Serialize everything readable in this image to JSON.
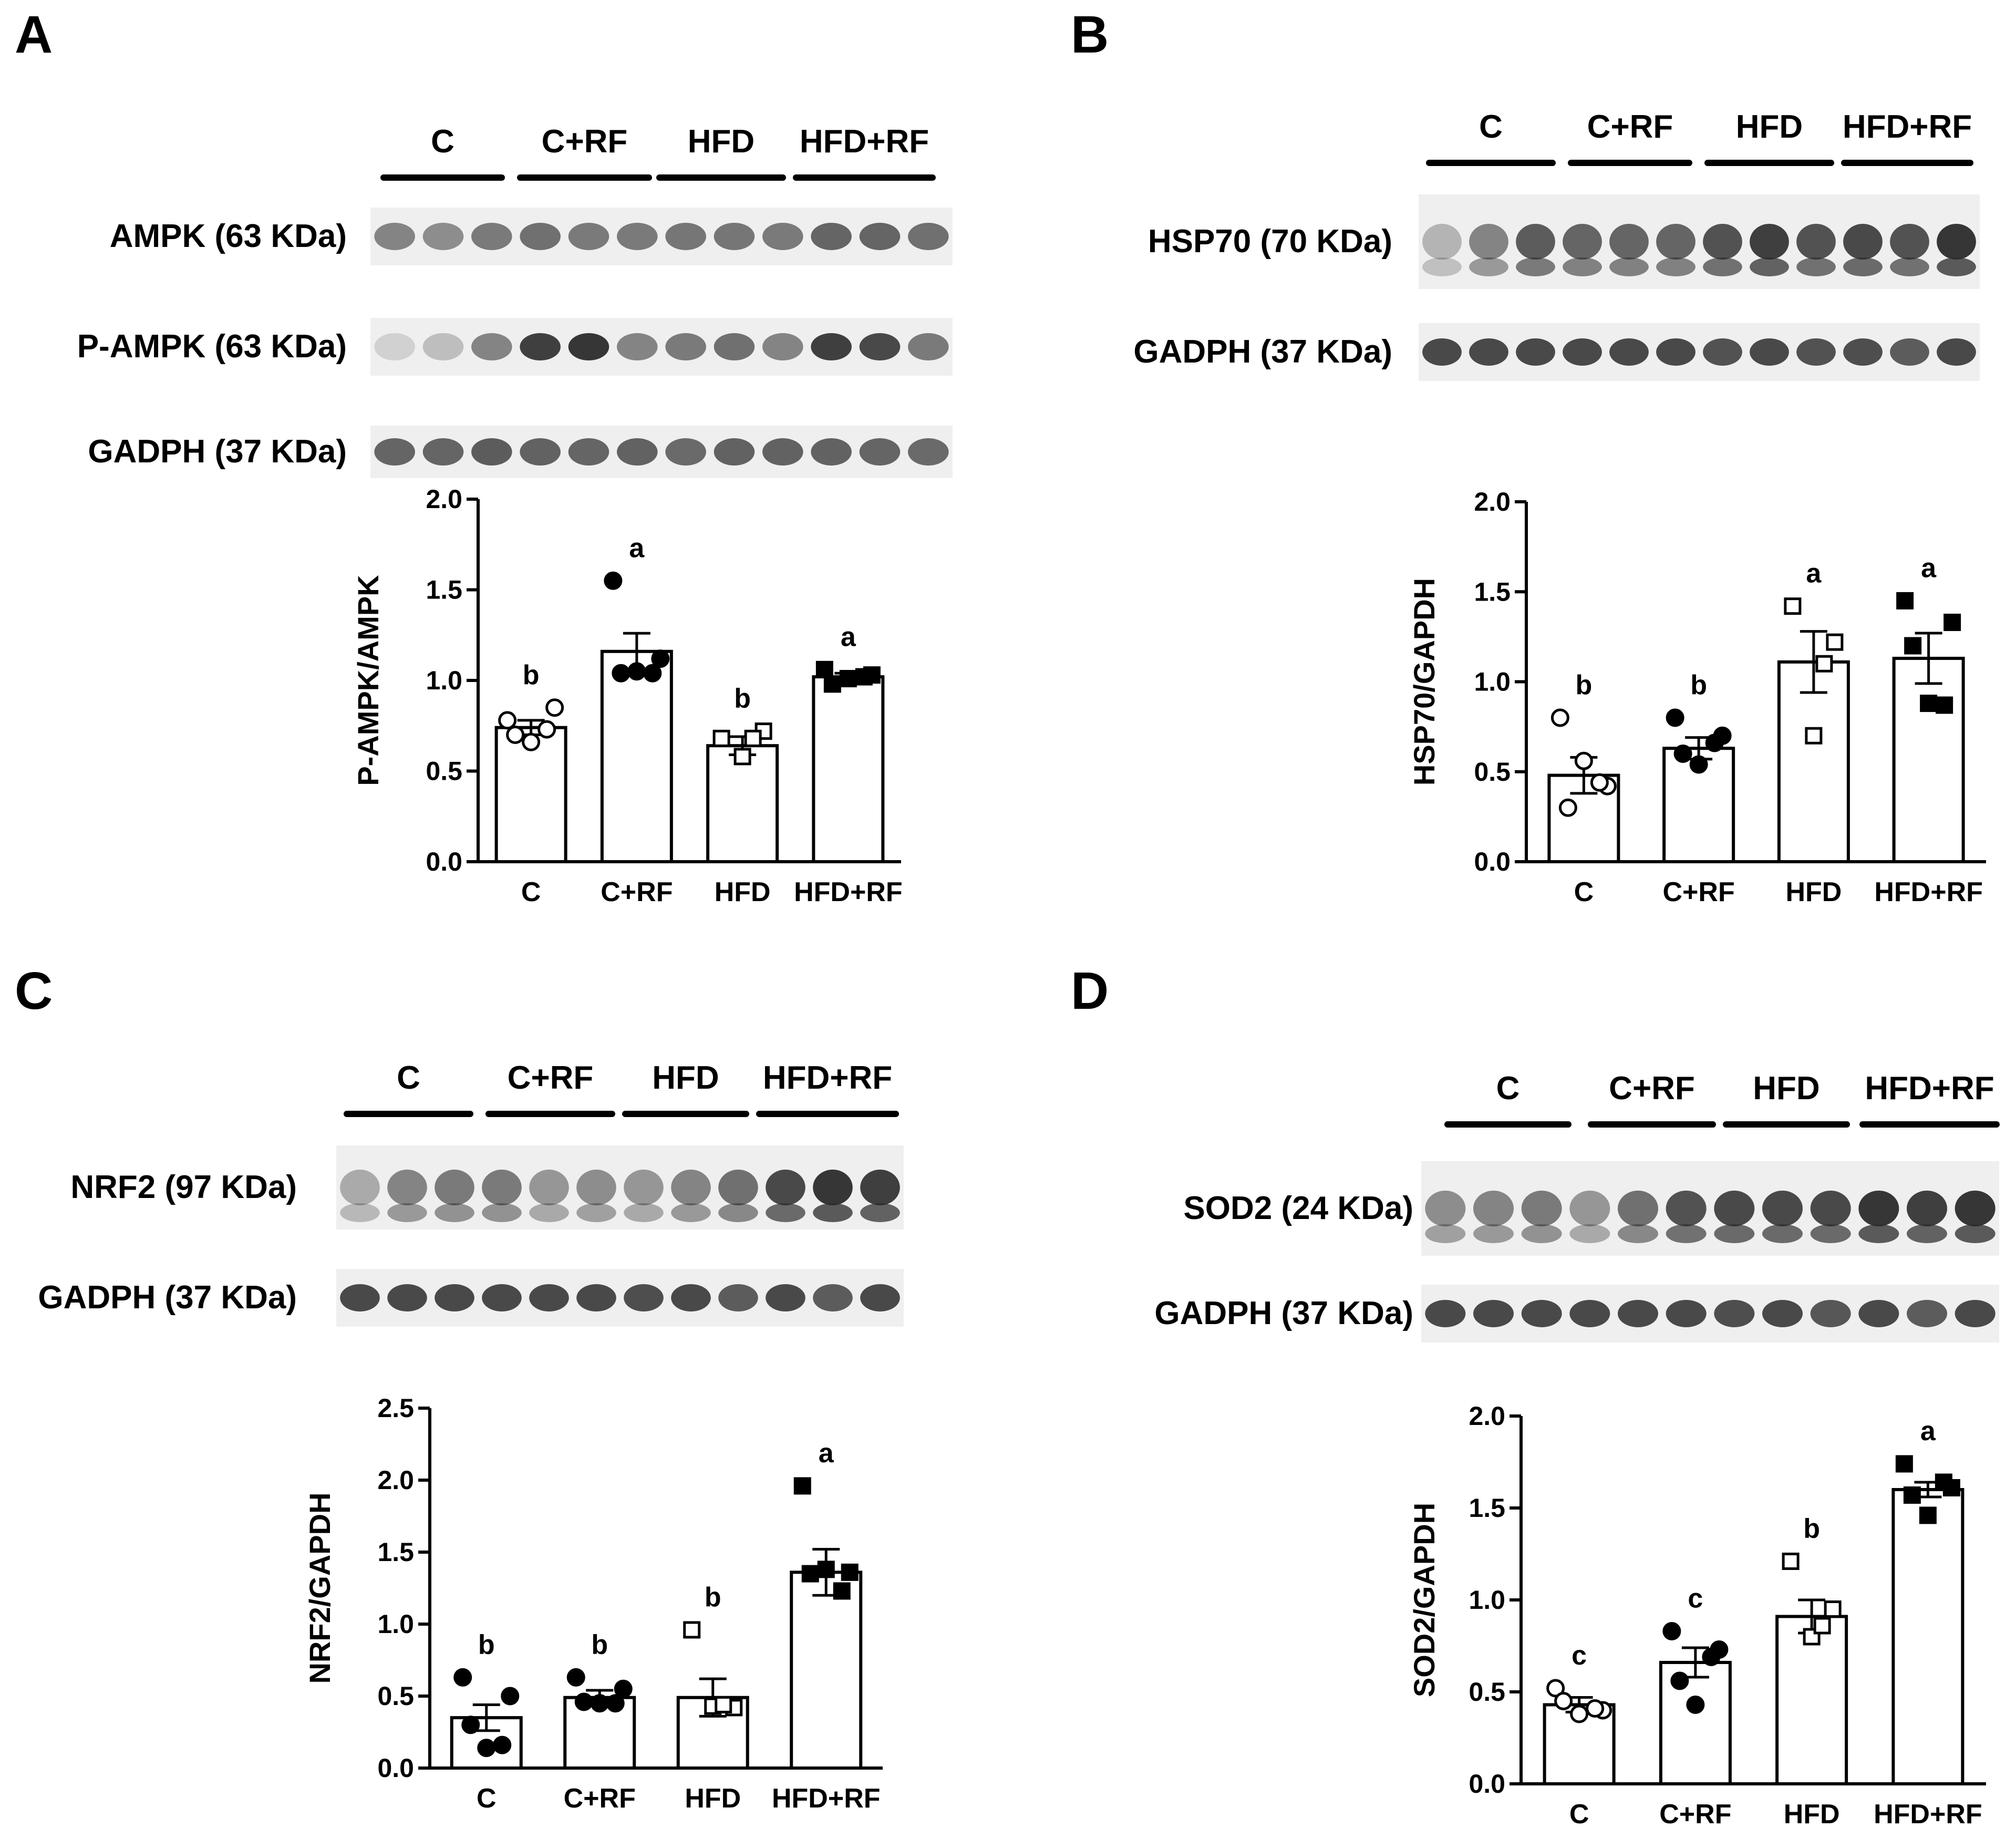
{
  "colors": {
    "ink": "#000000",
    "background": "#ffffff",
    "blot_band": "#2b2b2b",
    "blot_bg": "#efefef"
  },
  "panels": [
    {
      "letter": "A",
      "groups": [
        "C",
        "C+RF",
        "HFD",
        "HFD+RF"
      ],
      "blots": [
        {
          "label": "AMPK (63 KDa)",
          "intensities": [
            0.55,
            0.5,
            0.6,
            0.65,
            0.6,
            0.6,
            0.62,
            0.62,
            0.6,
            0.7,
            0.7,
            0.65
          ]
        },
        {
          "label": "P-AMPK (63 KDa)",
          "intensities": [
            0.15,
            0.25,
            0.55,
            0.9,
            0.95,
            0.55,
            0.6,
            0.65,
            0.55,
            0.9,
            0.85,
            0.6
          ]
        },
        {
          "label": "GADPH (37 KDa)",
          "intensities": [
            0.7,
            0.7,
            0.75,
            0.72,
            0.7,
            0.72,
            0.68,
            0.72,
            0.72,
            0.72,
            0.7,
            0.68
          ]
        }
      ],
      "chart_data": {
        "type": "bar",
        "ylabel": "P-AMPK/AMPK",
        "ylim": [
          0,
          2.0
        ],
        "yticks": [
          "0.0",
          "0.5",
          "1.0",
          "1.5",
          "2.0"
        ],
        "categories": [
          "C",
          "C+RF",
          "HFD",
          "HFD+RF"
        ],
        "values": [
          0.74,
          1.16,
          0.64,
          1.02
        ],
        "sem": [
          0.04,
          0.1,
          0.05,
          0.02
        ],
        "letters": [
          "b",
          "a",
          "b",
          "a"
        ],
        "markers": [
          "circle-open",
          "circle-filled",
          "square-open",
          "square-filled"
        ],
        "points": [
          [
            0.78,
            0.85,
            0.7,
            0.66,
            0.73
          ],
          [
            1.55,
            1.12,
            1.04,
            1.05,
            1.04
          ],
          [
            0.68,
            0.72,
            0.58,
            0.68
          ],
          [
            1.06,
            1.03,
            0.98,
            1.01,
            1.02
          ]
        ]
      }
    },
    {
      "letter": "B",
      "groups": [
        "C",
        "C+RF",
        "HFD",
        "HFD+RF"
      ],
      "blots": [
        {
          "label": "HSP70 (70 KDa)",
          "intensities": [
            0.3,
            0.55,
            0.75,
            0.7,
            0.7,
            0.7,
            0.8,
            0.9,
            0.8,
            0.85,
            0.8,
            0.95
          ]
        },
        {
          "label": "GADPH (37 KDa)",
          "intensities": [
            0.85,
            0.85,
            0.85,
            0.85,
            0.85,
            0.85,
            0.8,
            0.85,
            0.8,
            0.82,
            0.75,
            0.85
          ]
        }
      ],
      "chart_data": {
        "type": "bar",
        "ylabel": "HSP70/GAPDH",
        "ylim": [
          0,
          2.0
        ],
        "yticks": [
          "0.0",
          "0.5",
          "1.0",
          "1.5",
          "2.0"
        ],
        "categories": [
          "C",
          "C+RF",
          "HFD",
          "HFD+RF"
        ],
        "values": [
          0.48,
          0.63,
          1.11,
          1.13
        ],
        "sem": [
          0.1,
          0.06,
          0.17,
          0.14
        ],
        "letters": [
          "b",
          "b",
          "a",
          "a"
        ],
        "markers": [
          "circle-open",
          "circle-filled",
          "square-open",
          "square-filled"
        ],
        "points": [
          [
            0.8,
            0.42,
            0.3,
            0.56,
            0.44
          ],
          [
            0.8,
            0.7,
            0.6,
            0.54,
            0.66
          ],
          [
            1.42,
            1.22,
            0.7,
            1.1
          ],
          [
            1.45,
            1.33,
            1.2,
            0.88,
            0.87
          ]
        ]
      }
    },
    {
      "letter": "C",
      "groups": [
        "C",
        "C+RF",
        "HFD",
        "HFD+RF"
      ],
      "blots": [
        {
          "label": "NRF2 (97 KDa)",
          "intensities": [
            0.35,
            0.55,
            0.6,
            0.6,
            0.45,
            0.5,
            0.45,
            0.55,
            0.65,
            0.85,
            0.95,
            0.9
          ]
        },
        {
          "label": "GADPH (37 KDa)",
          "intensities": [
            0.85,
            0.85,
            0.85,
            0.85,
            0.85,
            0.85,
            0.82,
            0.85,
            0.75,
            0.85,
            0.75,
            0.85
          ]
        }
      ],
      "chart_data": {
        "type": "bar",
        "ylabel": "NRF2/GAPDH",
        "ylim": [
          0,
          2.5
        ],
        "yticks": [
          "0.0",
          "0.5",
          "1.0",
          "1.5",
          "2.0",
          "2.5"
        ],
        "categories": [
          "C",
          "C+RF",
          "HFD",
          "HFD+RF"
        ],
        "values": [
          0.35,
          0.49,
          0.49,
          1.36
        ],
        "sem": [
          0.09,
          0.05,
          0.13,
          0.16
        ],
        "letters": [
          "b",
          "b",
          "b",
          "a"
        ],
        "markers": [
          "circle-filled",
          "circle-filled",
          "square-open",
          "square-filled"
        ],
        "points": [
          [
            0.63,
            0.5,
            0.3,
            0.14,
            0.16
          ],
          [
            0.63,
            0.55,
            0.46,
            0.45,
            0.45
          ],
          [
            0.96,
            0.42,
            0.43,
            0.44
          ],
          [
            1.96,
            1.36,
            1.35,
            1.38,
            1.23
          ]
        ]
      }
    },
    {
      "letter": "D",
      "groups": [
        "C",
        "C+RF",
        "HFD",
        "HFD+RF"
      ],
      "blots": [
        {
          "label": "SOD2 (24 KDa)",
          "intensities": [
            0.5,
            0.55,
            0.6,
            0.45,
            0.65,
            0.8,
            0.85,
            0.85,
            0.85,
            0.95,
            0.9,
            0.95
          ]
        },
        {
          "label": "GADPH (37 KDa)",
          "intensities": [
            0.85,
            0.85,
            0.85,
            0.85,
            0.85,
            0.85,
            0.82,
            0.85,
            0.78,
            0.85,
            0.75,
            0.85
          ]
        }
      ],
      "chart_data": {
        "type": "bar",
        "ylabel": "SOD2/GAPDH",
        "ylim": [
          0,
          2.0
        ],
        "yticks": [
          "0.0",
          "0.5",
          "1.0",
          "1.5",
          "2.0"
        ],
        "categories": [
          "C",
          "C+RF",
          "HFD",
          "HFD+RF"
        ],
        "values": [
          0.43,
          0.66,
          0.91,
          1.6
        ],
        "sem": [
          0.04,
          0.08,
          0.09,
          0.04
        ],
        "letters": [
          "c",
          "c",
          "b",
          "a"
        ],
        "markers": [
          "circle-open",
          "circle-filled",
          "square-open",
          "square-filled"
        ],
        "points": [
          [
            0.52,
            0.4,
            0.45,
            0.38,
            0.41
          ],
          [
            0.83,
            0.73,
            0.56,
            0.43,
            0.69
          ],
          [
            1.21,
            0.95,
            0.8,
            0.86
          ],
          [
            1.74,
            1.61,
            1.57,
            1.46,
            1.64
          ]
        ]
      }
    }
  ]
}
